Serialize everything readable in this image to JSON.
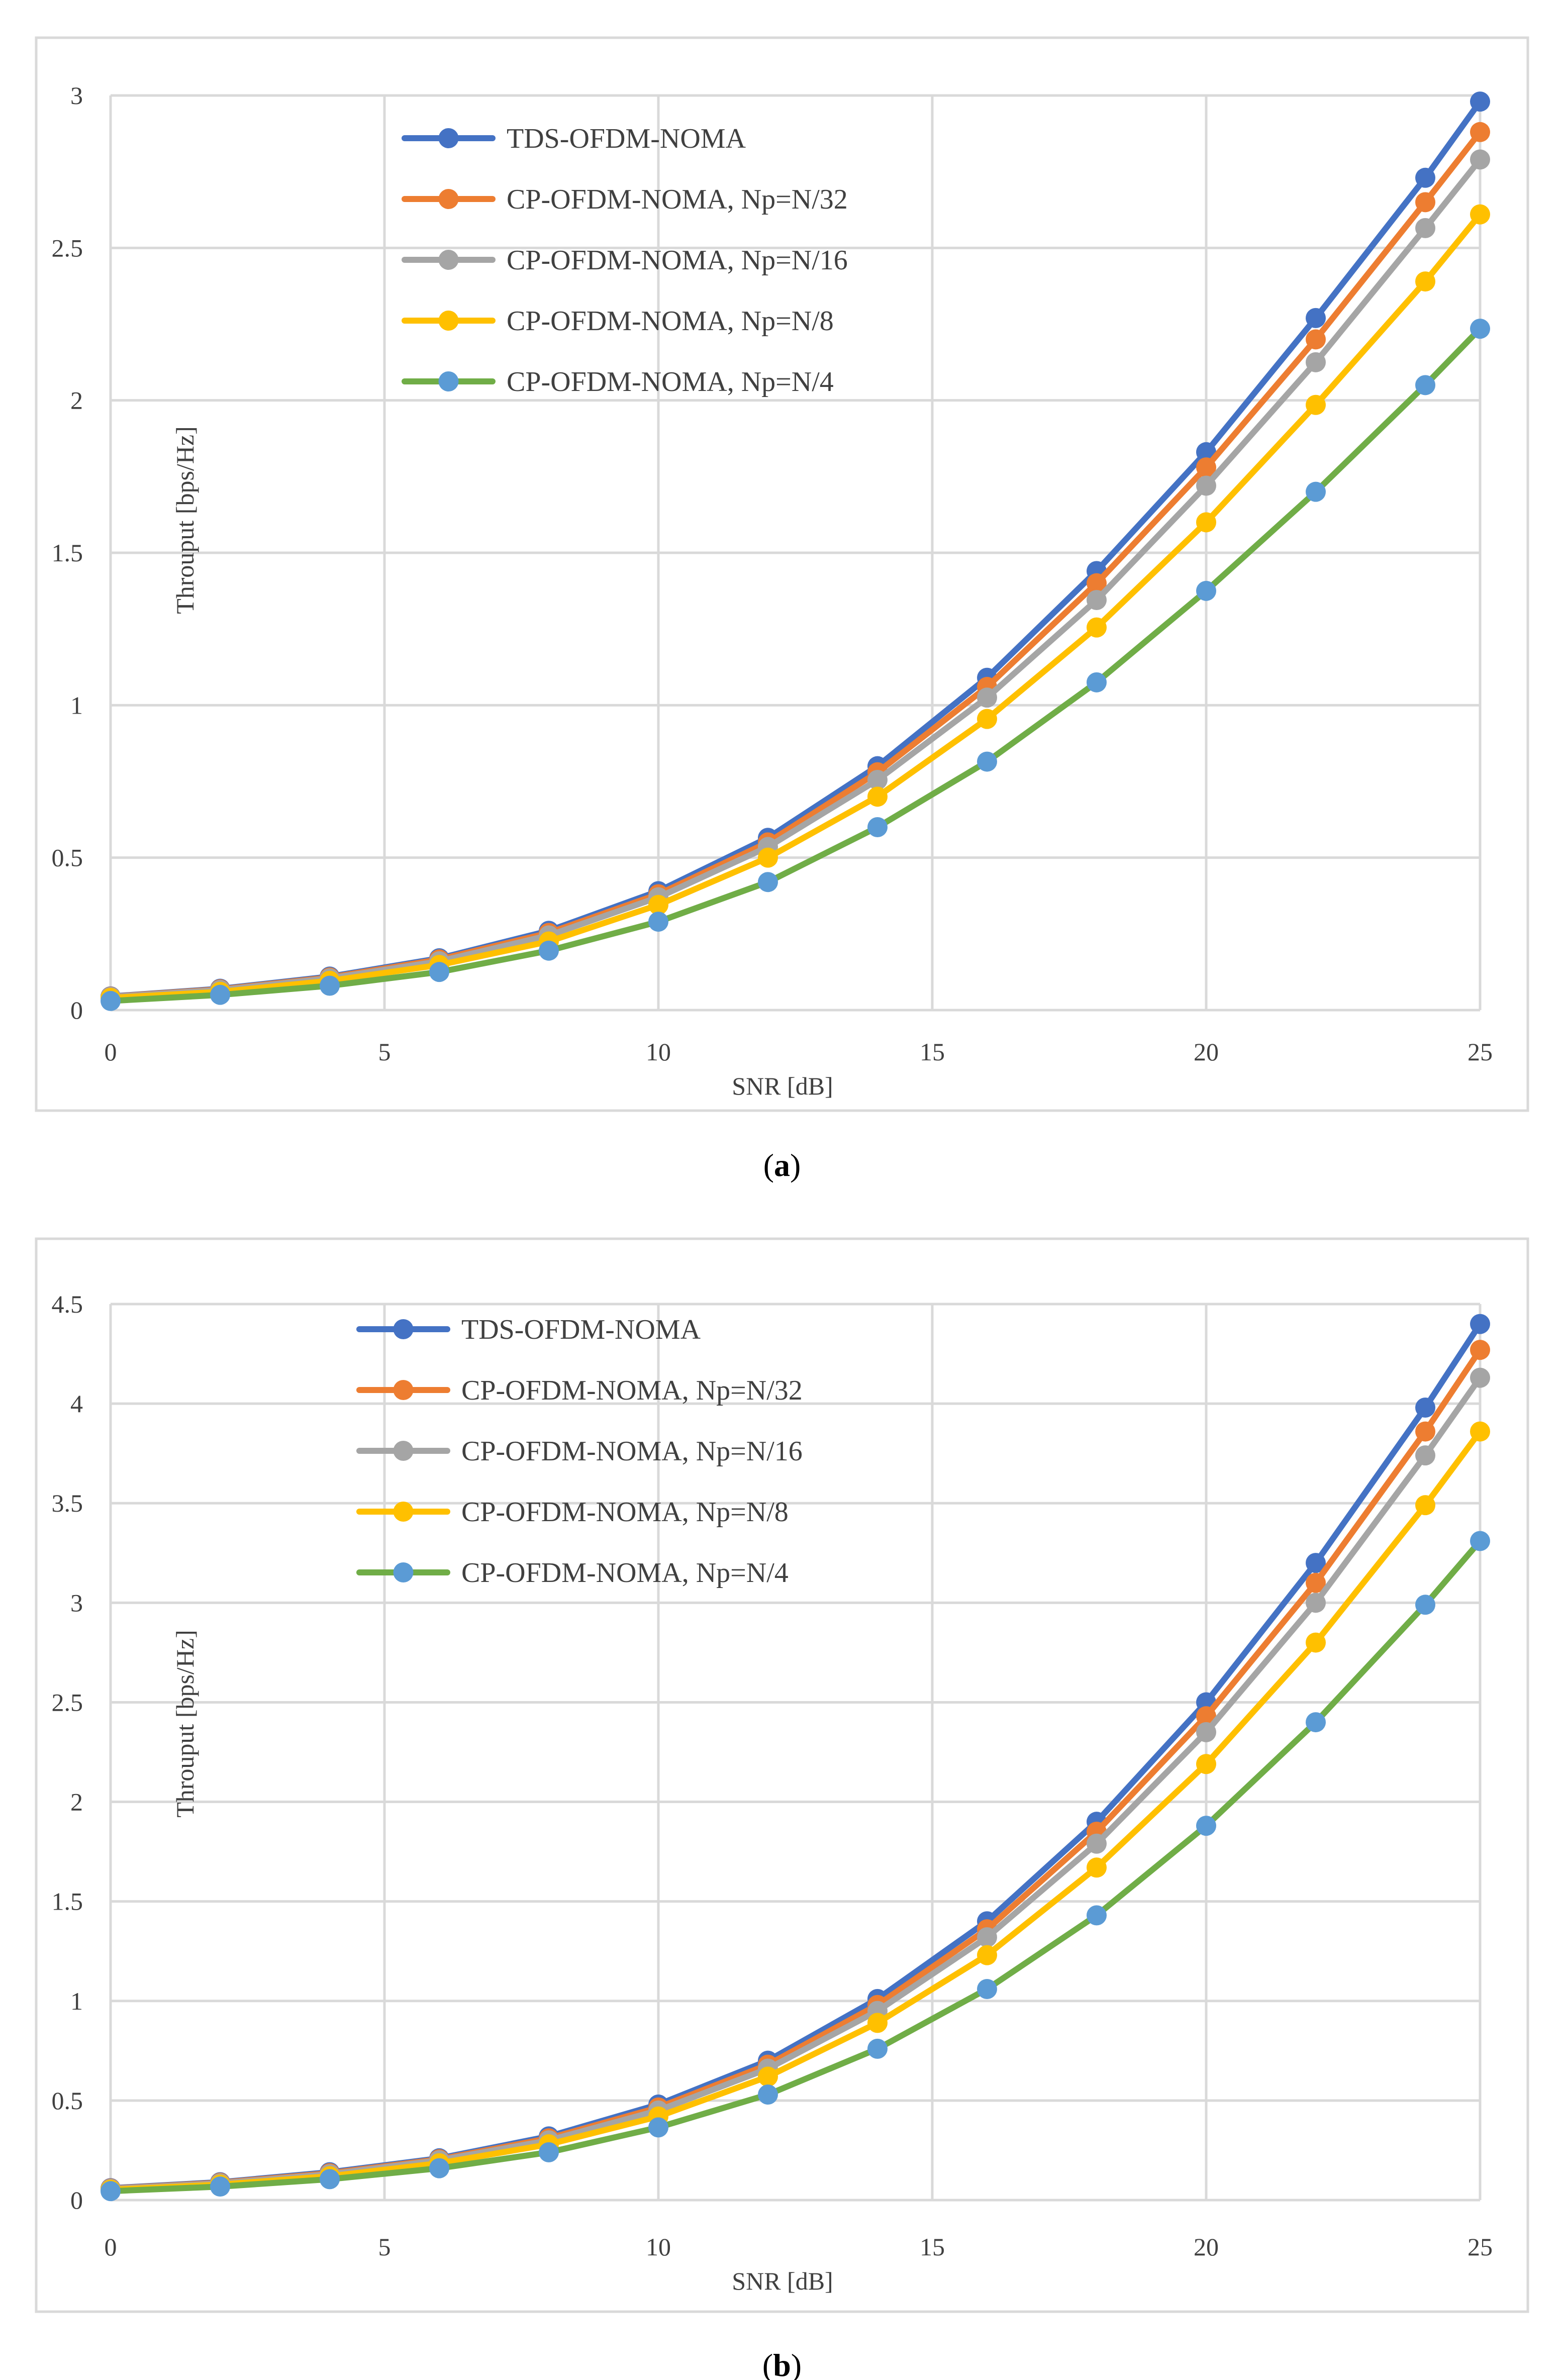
{
  "chart_data": [
    {
      "type": "line",
      "panel_label": "a",
      "title": "",
      "xlabel": "SNR [dB]",
      "ylabel": "Throuput [bps/Hz]",
      "xlim": [
        0,
        25
      ],
      "ylim": [
        0,
        3
      ],
      "xticks": [
        0,
        5,
        10,
        15,
        20,
        25
      ],
      "xtick_labels": [
        "0",
        "5",
        "10",
        "15",
        "20",
        "25"
      ],
      "yticks": [
        0,
        0.5,
        1,
        1.5,
        2,
        2.5,
        3
      ],
      "ytick_labels": [
        "0",
        "0.5",
        "1",
        "1.5",
        "2",
        "2.5",
        "3"
      ],
      "grid": true,
      "legend_position": "top-center",
      "x": [
        0,
        2,
        4,
        6,
        8,
        10,
        12,
        14,
        16,
        18,
        20,
        22,
        24,
        25
      ],
      "series": [
        {
          "name": "TDS-OFDM-NOMA",
          "color": "#4472C4",
          "values": [
            0.045,
            0.07,
            0.11,
            0.17,
            0.26,
            0.39,
            0.565,
            0.8,
            1.09,
            1.44,
            1.83,
            2.27,
            2.73,
            2.98
          ]
        },
        {
          "name": "CP-OFDM-NOMA, Np=N/32",
          "color": "#ED7D31",
          "values": [
            0.044,
            0.068,
            0.107,
            0.166,
            0.253,
            0.38,
            0.55,
            0.78,
            1.06,
            1.4,
            1.78,
            2.2,
            2.65,
            2.88
          ]
        },
        {
          "name": "CP-OFDM-NOMA, Np=N/16",
          "color": "#A5A5A5",
          "values": [
            0.043,
            0.066,
            0.104,
            0.16,
            0.245,
            0.37,
            0.535,
            0.755,
            1.025,
            1.345,
            1.72,
            2.125,
            2.565,
            2.79
          ]
        },
        {
          "name": "CP-OFDM-NOMA, Np=N/8",
          "color": "#FFC000",
          "values": [
            0.04,
            0.06,
            0.096,
            0.148,
            0.225,
            0.345,
            0.5,
            0.7,
            0.955,
            1.255,
            1.6,
            1.985,
            2.39,
            2.61
          ]
        },
        {
          "name": "CP-OFDM-NOMA, Np=N/4",
          "color": "#70AD47",
          "marker_color": "#5B9BD5",
          "values": [
            0.03,
            0.05,
            0.08,
            0.125,
            0.195,
            0.29,
            0.42,
            0.6,
            0.815,
            1.075,
            1.375,
            1.7,
            2.05,
            2.235
          ]
        }
      ]
    },
    {
      "type": "line",
      "panel_label": "b",
      "title": "",
      "xlabel": "SNR [dB]",
      "ylabel": "Throuput [bps/Hz]",
      "xlim": [
        0,
        25
      ],
      "ylim": [
        0,
        4.5
      ],
      "xticks": [
        0,
        5,
        10,
        15,
        20,
        25
      ],
      "xtick_labels": [
        "0",
        "5",
        "10",
        "15",
        "20",
        "25"
      ],
      "yticks": [
        0,
        0.5,
        1,
        1.5,
        2,
        2.5,
        3,
        3.5,
        4,
        4.5
      ],
      "ytick_labels": [
        "0",
        "0.5",
        "1",
        "1.5",
        "2",
        "2.5",
        "3",
        "3.5",
        "4",
        "4.5"
      ],
      "grid": true,
      "legend_position": "top-left",
      "x": [
        0,
        2,
        4,
        6,
        8,
        10,
        12,
        14,
        16,
        18,
        20,
        22,
        24,
        25
      ],
      "series": [
        {
          "name": "TDS-OFDM-NOMA",
          "color": "#4472C4",
          "values": [
            0.06,
            0.09,
            0.14,
            0.21,
            0.32,
            0.48,
            0.7,
            1.01,
            1.4,
            1.9,
            2.5,
            3.2,
            3.98,
            4.4
          ]
        },
        {
          "name": "CP-OFDM-NOMA, Np=N/32",
          "color": "#ED7D31",
          "values": [
            0.058,
            0.087,
            0.135,
            0.205,
            0.31,
            0.465,
            0.68,
            0.98,
            1.36,
            1.85,
            2.43,
            3.1,
            3.86,
            4.27
          ]
        },
        {
          "name": "CP-OFDM-NOMA, Np=N/16",
          "color": "#A5A5A5",
          "values": [
            0.056,
            0.084,
            0.13,
            0.2,
            0.3,
            0.45,
            0.66,
            0.95,
            1.32,
            1.79,
            2.35,
            3.0,
            3.74,
            4.13
          ]
        },
        {
          "name": "CP-OFDM-NOMA, Np=N/8",
          "color": "#FFC000",
          "values": [
            0.052,
            0.078,
            0.12,
            0.185,
            0.28,
            0.42,
            0.62,
            0.89,
            1.23,
            1.67,
            2.19,
            2.8,
            3.49,
            3.86
          ]
        },
        {
          "name": "CP-OFDM-NOMA, Np=N/4",
          "color": "#70AD47",
          "marker_color": "#5B9BD5",
          "values": [
            0.045,
            0.068,
            0.105,
            0.16,
            0.24,
            0.365,
            0.53,
            0.76,
            1.06,
            1.43,
            1.88,
            2.4,
            2.99,
            3.31
          ]
        }
      ]
    }
  ]
}
